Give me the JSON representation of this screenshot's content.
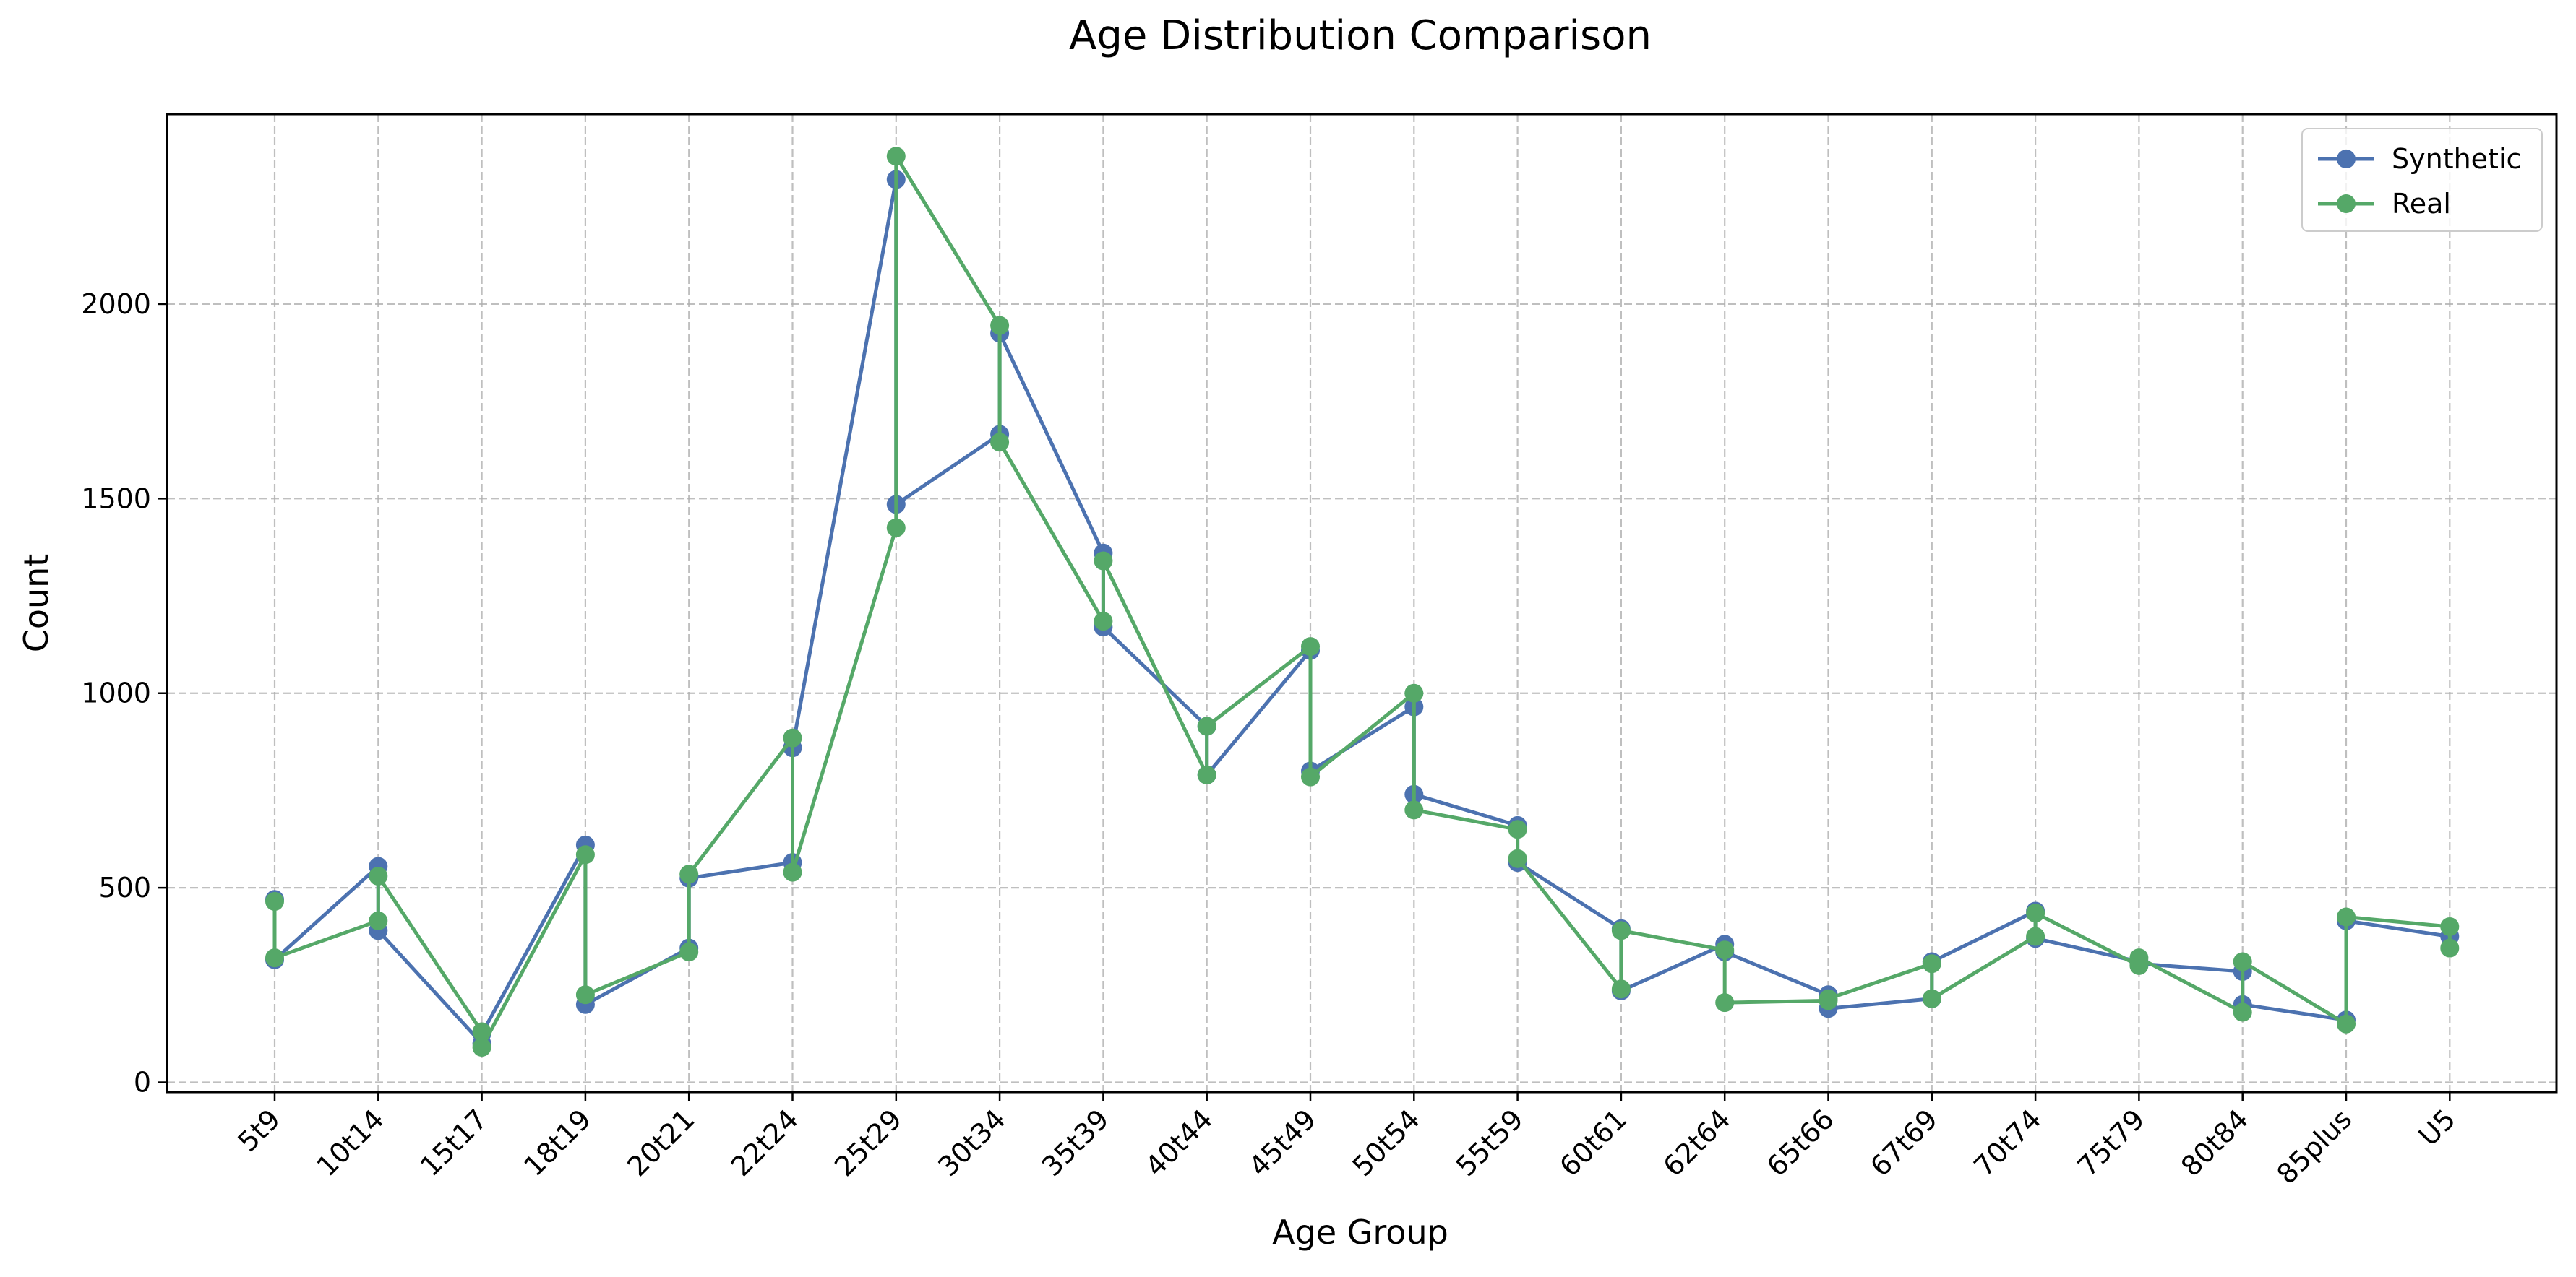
{
  "chart_data": {
    "type": "line",
    "title": "Age Distribution Comparison",
    "xlabel": "Age Group",
    "ylabel": "Count",
    "ylim": [
      -25,
      2488
    ],
    "yticks": [
      0,
      500,
      1000,
      1500,
      2000
    ],
    "grid": true,
    "legend_position": "top-right",
    "categories": [
      "5t9",
      "10t14",
      "15t17",
      "18t19",
      "20t21",
      "22t24",
      "25t29",
      "30t34",
      "35t39",
      "40t44",
      "45t49",
      "50t54",
      "55t59",
      "60t61",
      "62t64",
      "65t66",
      "67t69",
      "70t74",
      "75t79",
      "80t84",
      "85plus",
      "U5"
    ],
    "series": [
      {
        "name": "Synthetic",
        "color": "#4c72b0",
        "points": [
          [
            "5t9",
            470
          ],
          [
            "5t9",
            315
          ],
          [
            "10t14",
            555
          ],
          [
            "10t14",
            390
          ],
          [
            "15t17",
            100
          ],
          [
            "15t17",
            125
          ],
          [
            "18t19",
            610
          ],
          [
            "18t19",
            200
          ],
          [
            "20t21",
            345
          ],
          [
            "20t21",
            525
          ],
          [
            "22t24",
            565
          ],
          [
            "22t24",
            860
          ],
          [
            "25t29",
            2320
          ],
          [
            "25t29",
            1485
          ],
          [
            "30t34",
            1665
          ],
          [
            "30t34",
            1925
          ],
          [
            "35t39",
            1360
          ],
          [
            "35t39",
            1170
          ],
          [
            "40t44",
            915
          ],
          [
            "40t44",
            790
          ],
          [
            "45t49",
            1110
          ],
          [
            "45t49",
            800
          ],
          [
            "50t54",
            965
          ],
          [
            "50t54",
            740
          ],
          [
            "55t59",
            660
          ],
          [
            "55t59",
            565
          ],
          [
            "60t61",
            395
          ],
          [
            "60t61",
            235
          ],
          [
            "62t64",
            355
          ],
          [
            "62t64",
            335
          ],
          [
            "65t66",
            225
          ],
          [
            "65t66",
            190
          ],
          [
            "67t69",
            215
          ],
          [
            "67t69",
            310
          ],
          [
            "70t74",
            440
          ],
          [
            "70t74",
            370
          ],
          [
            "75t79",
            310
          ],
          [
            "75t79",
            305
          ],
          [
            "80t84",
            285
          ],
          [
            "80t84",
            200
          ],
          [
            "85plus",
            160
          ],
          [
            "85plus",
            415
          ],
          [
            "U5",
            375
          ]
        ]
      },
      {
        "name": "Real",
        "color": "#55a868",
        "points": [
          [
            "5t9",
            465
          ],
          [
            "5t9",
            320
          ],
          [
            "10t14",
            415
          ],
          [
            "10t14",
            530
          ],
          [
            "15t17",
            130
          ],
          [
            "15t17",
            90
          ],
          [
            "18t19",
            585
          ],
          [
            "18t19",
            225
          ],
          [
            "20t21",
            335
          ],
          [
            "20t21",
            535
          ],
          [
            "22t24",
            885
          ],
          [
            "22t24",
            540
          ],
          [
            "25t29",
            1425
          ],
          [
            "25t29",
            2380
          ],
          [
            "30t34",
            1945
          ],
          [
            "30t34",
            1645
          ],
          [
            "35t39",
            1185
          ],
          [
            "35t39",
            1340
          ],
          [
            "40t44",
            790
          ],
          [
            "40t44",
            915
          ],
          [
            "45t49",
            1120
          ],
          [
            "45t49",
            785
          ],
          [
            "50t54",
            1000
          ],
          [
            "50t54",
            700
          ],
          [
            "55t59",
            650
          ],
          [
            "55t59",
            575
          ],
          [
            "60t61",
            240
          ],
          [
            "60t61",
            390
          ],
          [
            "62t64",
            340
          ],
          [
            "62t64",
            205
          ],
          [
            "65t66",
            210
          ],
          [
            "65t66",
            215
          ],
          [
            "67t69",
            305
          ],
          [
            "67t69",
            215
          ],
          [
            "70t74",
            375
          ],
          [
            "70t74",
            435
          ],
          [
            "75t79",
            300
          ],
          [
            "75t79",
            320
          ],
          [
            "80t84",
            180
          ],
          [
            "80t84",
            310
          ],
          [
            "85plus",
            150
          ],
          [
            "85plus",
            425
          ],
          [
            "U5",
            400
          ],
          [
            "U5",
            345
          ]
        ]
      }
    ]
  }
}
